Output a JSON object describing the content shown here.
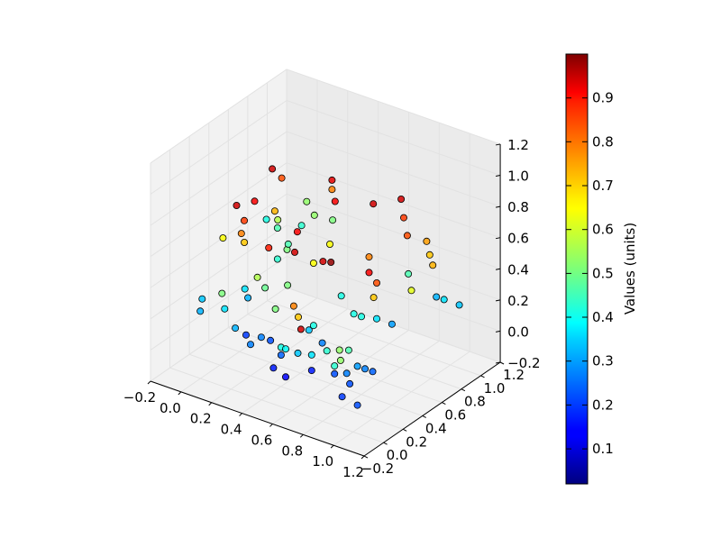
{
  "chart_data": {
    "type": "scatter3d",
    "title": "",
    "xlabel": "",
    "ylabel": "",
    "zlabel": "",
    "xlim": [
      -0.2,
      1.2
    ],
    "ylim": [
      -0.2,
      1.2
    ],
    "zlim": [
      -0.2,
      1.2
    ],
    "x_ticks": [
      "−0.2",
      "0.0",
      "0.2",
      "0.4",
      "0.6",
      "0.8",
      "1.0",
      "1.2"
    ],
    "y_ticks": [
      "−0.2",
      "0.0",
      "0.2",
      "0.4",
      "0.6",
      "0.8",
      "1.0",
      "1.2"
    ],
    "z_ticks": [
      "−0.2",
      "0.0",
      "0.2",
      "0.4",
      "0.6",
      "0.8",
      "1.0",
      "1.2"
    ],
    "grid": true,
    "colormap": "jet",
    "colorbar": {
      "label": "Values (units)",
      "range": [
        0.02,
        1.0
      ],
      "ticks": [
        "0.1",
        "0.2",
        "0.3",
        "0.4",
        "0.5",
        "0.6",
        "0.7",
        "0.8",
        "0.9"
      ]
    },
    "points": [
      {
        "x": 0.12,
        "y": 0.55,
        "z": 0.95,
        "v": 0.92
      },
      {
        "x": 0.15,
        "y": 0.6,
        "z": 0.88,
        "v": 0.8
      },
      {
        "x": 0.48,
        "y": 0.6,
        "z": 0.98,
        "v": 0.9
      },
      {
        "x": 0.48,
        "y": 0.6,
        "z": 0.92,
        "v": 0.75
      },
      {
        "x": 0.5,
        "y": 0.6,
        "z": 0.85,
        "v": 0.88
      },
      {
        "x": 0.75,
        "y": 0.6,
        "z": 0.92,
        "v": 0.92
      },
      {
        "x": 0.92,
        "y": 0.62,
        "z": 1.0,
        "v": 0.92
      },
      {
        "x": 0.95,
        "y": 0.6,
        "z": 0.9,
        "v": 0.82
      },
      {
        "x": 0.96,
        "y": 0.62,
        "z": 0.78,
        "v": 0.8
      },
      {
        "x": 1.1,
        "y": 0.6,
        "z": 0.8,
        "v": 0.72
      },
      {
        "x": 1.12,
        "y": 0.6,
        "z": 0.72,
        "v": 0.68
      },
      {
        "x": 1.14,
        "y": 0.6,
        "z": 0.66,
        "v": 0.7
      },
      {
        "x": 0.1,
        "y": 0.4,
        "z": 0.8,
        "v": 0.88
      },
      {
        "x": 0.2,
        "y": 0.45,
        "z": 0.75,
        "v": 0.7
      },
      {
        "x": 0.22,
        "y": 0.45,
        "z": 0.7,
        "v": 0.55
      },
      {
        "x": 0.25,
        "y": 0.4,
        "z": 0.68,
        "v": 0.45
      },
      {
        "x": 0.38,
        "y": 0.4,
        "z": 0.7,
        "v": 0.88
      },
      {
        "x": 0.32,
        "y": 0.4,
        "z": 0.6,
        "v": 0.45
      },
      {
        "x": 0.58,
        "y": 0.42,
        "z": 0.68,
        "v": 0.62
      },
      {
        "x": 0.6,
        "y": 0.4,
        "z": 0.58,
        "v": 0.98
      },
      {
        "x": 0.58,
        "y": 0.35,
        "z": 0.6,
        "v": 0.92
      },
      {
        "x": 0.85,
        "y": 0.4,
        "z": 0.7,
        "v": 0.75
      },
      {
        "x": 0.85,
        "y": 0.4,
        "z": 0.6,
        "v": 0.88
      },
      {
        "x": 0.9,
        "y": 0.4,
        "z": 0.55,
        "v": 0.8
      },
      {
        "x": -0.05,
        "y": 0.45,
        "z": 0.7,
        "v": 0.92
      },
      {
        "x": 0.0,
        "y": 0.45,
        "z": 0.62,
        "v": 0.82
      },
      {
        "x": 0.0,
        "y": 0.42,
        "z": 0.55,
        "v": 0.75
      },
      {
        "x": -0.12,
        "y": 0.42,
        "z": 0.48,
        "v": 0.62
      },
      {
        "x": 0.02,
        "y": 0.42,
        "z": 0.5,
        "v": 0.68
      },
      {
        "x": 0.18,
        "y": 0.42,
        "z": 0.52,
        "v": 0.85
      },
      {
        "x": 0.25,
        "y": 0.4,
        "z": 0.48,
        "v": 0.42
      },
      {
        "x": 0.3,
        "y": 0.42,
        "z": 0.55,
        "v": 0.5
      },
      {
        "x": 0.35,
        "y": 0.42,
        "z": 0.55,
        "v": 0.92
      },
      {
        "x": 0.55,
        "y": 0.3,
        "z": 0.6,
        "v": 0.62
      },
      {
        "x": 0.38,
        "y": 0.3,
        "z": 0.4,
        "v": 0.5
      },
      {
        "x": 0.7,
        "y": 0.35,
        "z": 0.42,
        "v": 0.4
      },
      {
        "x": 0.75,
        "y": 0.4,
        "z": 0.3,
        "v": 0.4
      },
      {
        "x": 0.8,
        "y": 0.4,
        "z": 0.3,
        "v": 0.4
      },
      {
        "x": 0.88,
        "y": 0.4,
        "z": 0.45,
        "v": 0.68
      },
      {
        "x": 0.9,
        "y": 0.4,
        "z": 0.32,
        "v": 0.35
      },
      {
        "x": 1.0,
        "y": 0.4,
        "z": 0.32,
        "v": 0.28
      },
      {
        "x": 0.15,
        "y": 0.35,
        "z": 0.35,
        "v": 0.55
      },
      {
        "x": 0.2,
        "y": 0.35,
        "z": 0.3,
        "v": 0.48
      },
      {
        "x": 0.1,
        "y": 0.3,
        "z": 0.28,
        "v": 0.35
      },
      {
        "x": 0.12,
        "y": 0.3,
        "z": 0.23,
        "v": 0.3
      },
      {
        "x": 0.3,
        "y": 0.3,
        "z": 0.22,
        "v": 0.5
      },
      {
        "x": 0.42,
        "y": 0.3,
        "z": 0.28,
        "v": 0.75
      },
      {
        "x": 0.45,
        "y": 0.3,
        "z": 0.22,
        "v": 0.68
      },
      {
        "x": 0.48,
        "y": 0.28,
        "z": 0.16,
        "v": 0.92
      },
      {
        "x": 0.52,
        "y": 0.3,
        "z": 0.16,
        "v": 0.32
      },
      {
        "x": 0.55,
        "y": 0.3,
        "z": 0.2,
        "v": 0.4
      },
      {
        "x": 0.62,
        "y": 0.28,
        "z": 0.12,
        "v": 0.25
      },
      {
        "x": 0.65,
        "y": 0.28,
        "z": 0.08,
        "v": 0.42
      },
      {
        "x": 0.72,
        "y": 0.3,
        "z": 0.1,
        "v": 0.52
      },
      {
        "x": 0.78,
        "y": 0.3,
        "z": 0.12,
        "v": 0.45
      },
      {
        "x": -0.05,
        "y": 0.3,
        "z": 0.2,
        "v": 0.5
      },
      {
        "x": -0.02,
        "y": 0.28,
        "z": 0.12,
        "v": 0.35
      },
      {
        "x": -0.18,
        "y": 0.3,
        "z": 0.12,
        "v": 0.32
      },
      {
        "x": -0.18,
        "y": 0.28,
        "z": 0.05,
        "v": 0.3
      },
      {
        "x": 0.05,
        "y": 0.28,
        "z": 0.02,
        "v": 0.3
      },
      {
        "x": 0.12,
        "y": 0.28,
        "z": 0.0,
        "v": 0.18
      },
      {
        "x": 0.22,
        "y": 0.28,
        "z": 0.02,
        "v": 0.25
      },
      {
        "x": 0.28,
        "y": 0.28,
        "z": 0.02,
        "v": 0.2
      },
      {
        "x": 0.35,
        "y": 0.28,
        "z": 0.0,
        "v": 0.4
      },
      {
        "x": 0.38,
        "y": 0.28,
        "z": 0.0,
        "v": 0.38
      },
      {
        "x": 0.46,
        "y": 0.28,
        "z": 0.0,
        "v": 0.32
      },
      {
        "x": 0.55,
        "y": 0.28,
        "z": 0.02,
        "v": 0.35
      },
      {
        "x": 0.7,
        "y": 0.28,
        "z": 0.0,
        "v": 0.42
      },
      {
        "x": 0.74,
        "y": 0.28,
        "z": 0.05,
        "v": 0.52
      },
      {
        "x": 0.85,
        "y": 0.28,
        "z": 0.05,
        "v": 0.28
      },
      {
        "x": 0.9,
        "y": 0.28,
        "z": 0.05,
        "v": 0.25
      },
      {
        "x": 0.95,
        "y": 0.28,
        "z": 0.05,
        "v": 0.22
      },
      {
        "x": 0.15,
        "y": 0.28,
        "z": -0.05,
        "v": 0.25
      },
      {
        "x": 0.35,
        "y": 0.28,
        "z": -0.05,
        "v": 0.22
      },
      {
        "x": 0.55,
        "y": 0.28,
        "z": -0.08,
        "v": 0.15
      },
      {
        "x": 0.7,
        "y": 0.28,
        "z": -0.05,
        "v": 0.2
      },
      {
        "x": 0.78,
        "y": 0.28,
        "z": -0.02,
        "v": 0.25
      },
      {
        "x": 0.8,
        "y": 0.28,
        "z": -0.08,
        "v": 0.2
      },
      {
        "x": 0.3,
        "y": 0.28,
        "z": -0.15,
        "v": 0.15
      },
      {
        "x": 0.38,
        "y": 0.28,
        "z": -0.18,
        "v": 0.12
      },
      {
        "x": 0.75,
        "y": 0.28,
        "z": -0.18,
        "v": 0.18
      },
      {
        "x": 0.85,
        "y": 0.28,
        "z": -0.2,
        "v": 0.2
      },
      {
        "x": 1.1,
        "y": 0.7,
        "z": 0.4,
        "v": 0.3
      },
      {
        "x": 1.15,
        "y": 0.7,
        "z": 0.4,
        "v": 0.35
      },
      {
        "x": 1.25,
        "y": 0.7,
        "z": 0.4,
        "v": 0.32
      },
      {
        "x": 1.0,
        "y": 0.6,
        "z": 0.45,
        "v": 0.6
      },
      {
        "x": 0.98,
        "y": 0.6,
        "z": 0.55,
        "v": 0.45
      },
      {
        "x": 0.3,
        "y": 0.7,
        "z": 0.65,
        "v": 0.52
      },
      {
        "x": 0.25,
        "y": 0.7,
        "z": 0.72,
        "v": 0.52
      },
      {
        "x": 0.42,
        "y": 0.7,
        "z": 0.66,
        "v": 0.5
      },
      {
        "x": 0.28,
        "y": 0.6,
        "z": 0.62,
        "v": 0.42
      },
      {
        "x": 0.05,
        "y": 0.6,
        "z": 0.58,
        "v": 0.4
      }
    ]
  }
}
